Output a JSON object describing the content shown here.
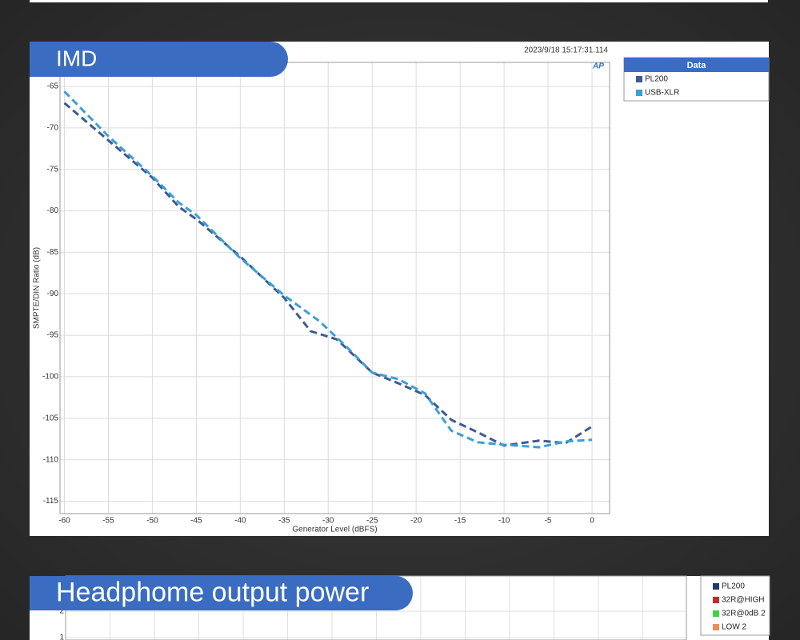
{
  "chart_data": [
    {
      "type": "line",
      "title": "IMD",
      "timestamp": "2023/9/18 15:17:31.114",
      "logo": "AP",
      "xlabel": "Generator Level (dBFS)",
      "ylabel": "SMPTE/DIN Ratio (dB)",
      "legend_title": "Data",
      "legend": "right",
      "grid": true,
      "dashed": true,
      "xlim": [
        -60.5,
        2
      ],
      "xticks": [
        -60,
        -55,
        -50,
        -45,
        -40,
        -35,
        -30,
        -25,
        -20,
        -15,
        -10,
        -5,
        0
      ],
      "ylim": [
        -116.5,
        -62.1
      ],
      "yticks": [
        -65,
        -70,
        -75,
        -80,
        -85,
        -90,
        -95,
        -100,
        -105,
        -110,
        -115
      ],
      "series": [
        {
          "name": "PL200",
          "color": "#3d5a92",
          "x": [
            -60,
            -55,
            -50,
            -47,
            -45,
            -40,
            -35,
            -32,
            -29,
            -25,
            -22,
            -19,
            -16,
            -13,
            -10,
            -6,
            -3,
            0
          ],
          "values": [
            -67,
            -71.5,
            -76,
            -79.5,
            -81,
            -85.5,
            -90.5,
            -94.5,
            -95.5,
            -99.5,
            -100.8,
            -102.2,
            -105.2,
            -106.7,
            -108.3,
            -107.7,
            -108,
            -106
          ]
        },
        {
          "name": "USB-XLR",
          "color": "#3a9fda",
          "x": [
            -60,
            -55,
            -50,
            -47,
            -45,
            -40,
            -35,
            -31,
            -28,
            -25,
            -22,
            -19,
            -16,
            -13,
            -10,
            -6,
            -3,
            0
          ],
          "values": [
            -65.6,
            -71,
            -75.8,
            -79,
            -80.5,
            -85.7,
            -90.2,
            -93.3,
            -96.3,
            -99.5,
            -100.3,
            -102,
            -106.5,
            -107.9,
            -108.2,
            -108.5,
            -107.8,
            -107.6
          ]
        }
      ]
    },
    {
      "type": "line",
      "title": "Headphome output power",
      "grid": true,
      "ylim": [
        0.91,
        3.33
      ],
      "yticks": [
        1,
        2
      ],
      "series": [
        {
          "name": "PL200",
          "color": "#1f3a6e"
        },
        {
          "name": "32R@HIGH",
          "color": "#c0302a"
        },
        {
          "name": "32R@0dB 2",
          "color": "#3fd43f"
        },
        {
          "name": "LOW 2",
          "color": "#f08c5a"
        }
      ]
    }
  ]
}
